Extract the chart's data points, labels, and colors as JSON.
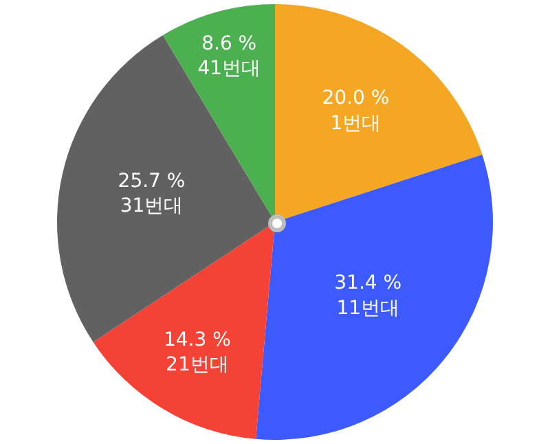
{
  "chart_data": {
    "type": "pie",
    "categories": [
      "1번대",
      "11번대",
      "21번대",
      "31번대",
      "41번대"
    ],
    "values": [
      20.0,
      31.4,
      14.3,
      25.7,
      8.6
    ],
    "value_labels": [
      "20.0 %",
      "31.4 %",
      "14.3 %",
      "25.7 %",
      "8.6 %"
    ],
    "colors": [
      "#f5a623",
      "#3d5afe",
      "#f44336",
      "#616161",
      "#4caf50"
    ],
    "legend": false
  }
}
